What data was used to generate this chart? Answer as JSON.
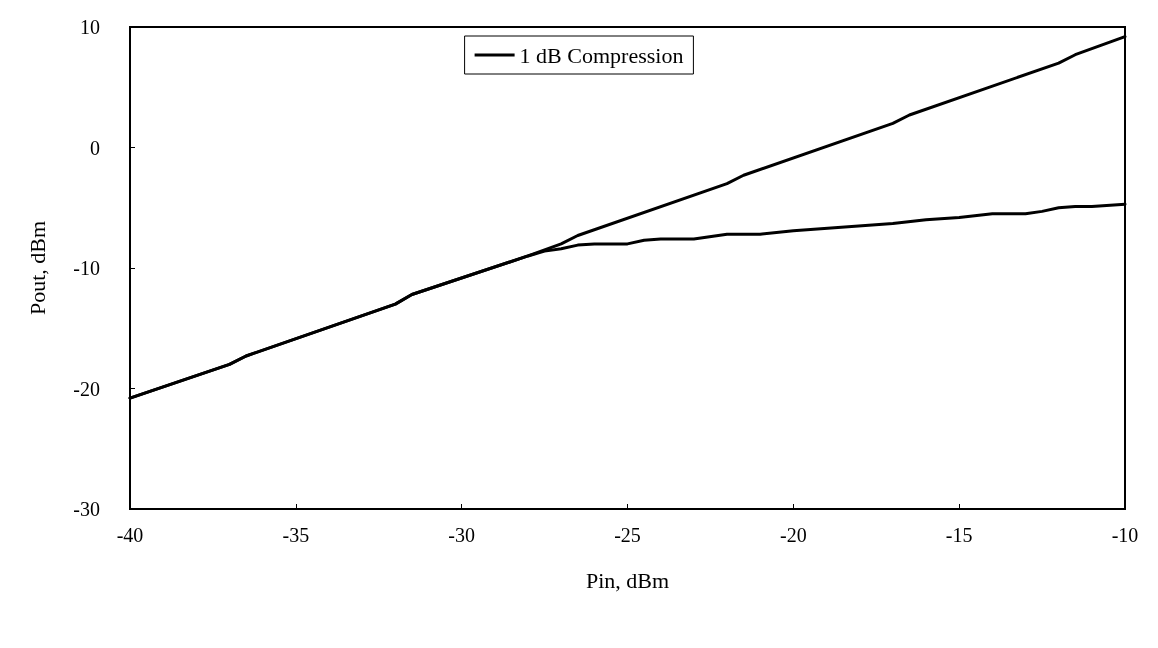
{
  "chart_data": {
    "type": "line",
    "xlabel": "Pin, dBm",
    "ylabel": "Pout, dBm",
    "xlim": [
      -40,
      -10
    ],
    "xticks": [
      -40,
      -35,
      -30,
      -25,
      -20,
      -15,
      -10
    ],
    "ylim": [
      -30,
      10
    ],
    "yticks": [
      -30,
      -20,
      -10,
      0,
      10
    ],
    "grid": false,
    "legend": "top",
    "marker": "none",
    "line_style": "solid",
    "series": [
      {
        "color": "#000000",
        "x": [
          -40,
          -37,
          -36.5,
          -32,
          -31.5,
          -28,
          -27,
          -26.5,
          -22,
          -21.5,
          -17,
          -16.5,
          -12,
          -11.5,
          -10
        ],
        "values": [
          -20.8,
          -18,
          -17.3,
          -13,
          -12.2,
          -9,
          -8,
          -7.3,
          -3,
          -2.3,
          2,
          2.7,
          7,
          7.7,
          9.2
        ]
      },
      {
        "name": "1 dB Compression",
        "color": "#000000",
        "x": [
          -40,
          -37,
          -36.5,
          -32,
          -31.5,
          -28,
          -27.5,
          -27,
          -26.5,
          -26,
          -25,
          -24.5,
          -24,
          -23,
          -22,
          -21,
          -20,
          -17,
          -16,
          -15,
          -14,
          -13,
          -12.5,
          -12,
          -11.5,
          -11,
          -10
        ],
        "values": [
          -20.8,
          -18,
          -17.3,
          -13,
          -12.2,
          -9,
          -8.6,
          -8.4,
          -8.1,
          -8,
          -8,
          -7.7,
          -7.6,
          -7.6,
          -7.2,
          -7.2,
          -6.9,
          -6.3,
          -6,
          -5.8,
          -5.5,
          -5.5,
          -5.3,
          -5,
          -4.9,
          -4.9,
          -4.7
        ]
      }
    ]
  }
}
